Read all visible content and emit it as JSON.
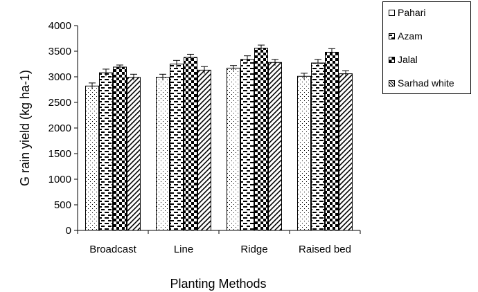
{
  "chart_data": {
    "type": "bar",
    "title": "",
    "xlabel": "Planting Methods",
    "ylabel": "G rain yield (kg ha-1)",
    "categories": [
      "Broadcast",
      "Line",
      "Ridge",
      "Raised bed"
    ],
    "ylim": [
      0,
      4000
    ],
    "yticks": [
      "0",
      "500",
      "1000",
      "1500",
      "2000",
      "2500",
      "3000",
      "3500",
      "4000"
    ],
    "grid": false,
    "legend_position": "top-right",
    "error_bars": true,
    "series": [
      {
        "name": "Pahari",
        "values": [
          2820,
          2990,
          3170,
          3010
        ],
        "errors": [
          60,
          60,
          50,
          60
        ],
        "pattern": "dots"
      },
      {
        "name": "Azam",
        "values": [
          3080,
          3250,
          3340,
          3270
        ],
        "errors": [
          70,
          70,
          70,
          70
        ],
        "pattern": "dashes"
      },
      {
        "name": "Jalal",
        "values": [
          3190,
          3380,
          3560,
          3480
        ],
        "errors": [
          40,
          60,
          60,
          70
        ],
        "pattern": "checker"
      },
      {
        "name": "Sarhad white",
        "values": [
          2990,
          3130,
          3280,
          3060
        ],
        "errors": [
          60,
          70,
          60,
          60
        ],
        "pattern": "diagonal"
      }
    ]
  }
}
